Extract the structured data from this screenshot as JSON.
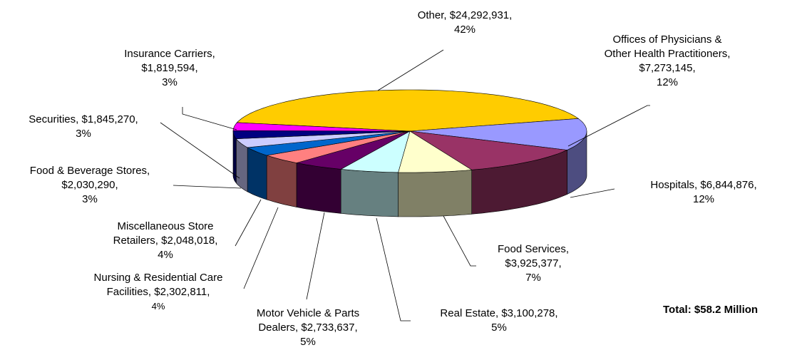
{
  "chart_data": {
    "type": "pie",
    "categories": [
      "Other,",
      "Offices of Physicians &\nOther Health Practitioners,",
      "Hospitals,",
      "Food Services,",
      "Real Estate,",
      "Motor Vehicle & Parts\nDealers,",
      "Nursing & Residential Care\nFacilities,",
      "Miscellaneous Store\nRetailers,",
      "Food & Beverage Stores,",
      "Securities,",
      "Insurance Carriers,"
    ],
    "values": [
      24292931,
      7273145,
      6844876,
      3925377,
      3100278,
      2733637,
      2302811,
      2048018,
      2030290,
      1845270,
      1819594
    ],
    "value_labels": [
      "$24,292,931,",
      "$7,273,145,",
      "$6,844,876,",
      "$3,925,377,",
      "$3,100,278,",
      "$2,733,637,",
      "$2,302,811,",
      "$2,048,018,",
      "$2,030,290,",
      "$1,845,270,",
      "$1,819,594,"
    ],
    "percents": [
      42,
      12,
      12,
      7,
      5,
      5,
      4,
      4,
      3,
      3,
      3
    ],
    "percent_labels": [
      "42%",
      "12%",
      "12%",
      "7%",
      "5%",
      "5%",
      "4%",
      "4%",
      "3%",
      "3%",
      "3%"
    ],
    "colors": [
      "#ffcc00",
      "#9999ff",
      "#993366",
      "#ffffcc",
      "#ccffff",
      "#660066",
      "#ff8080",
      "#0066cc",
      "#ccccff",
      "#000080",
      "#ff00ff"
    ],
    "annotation": "Total: $58.2 Million"
  }
}
